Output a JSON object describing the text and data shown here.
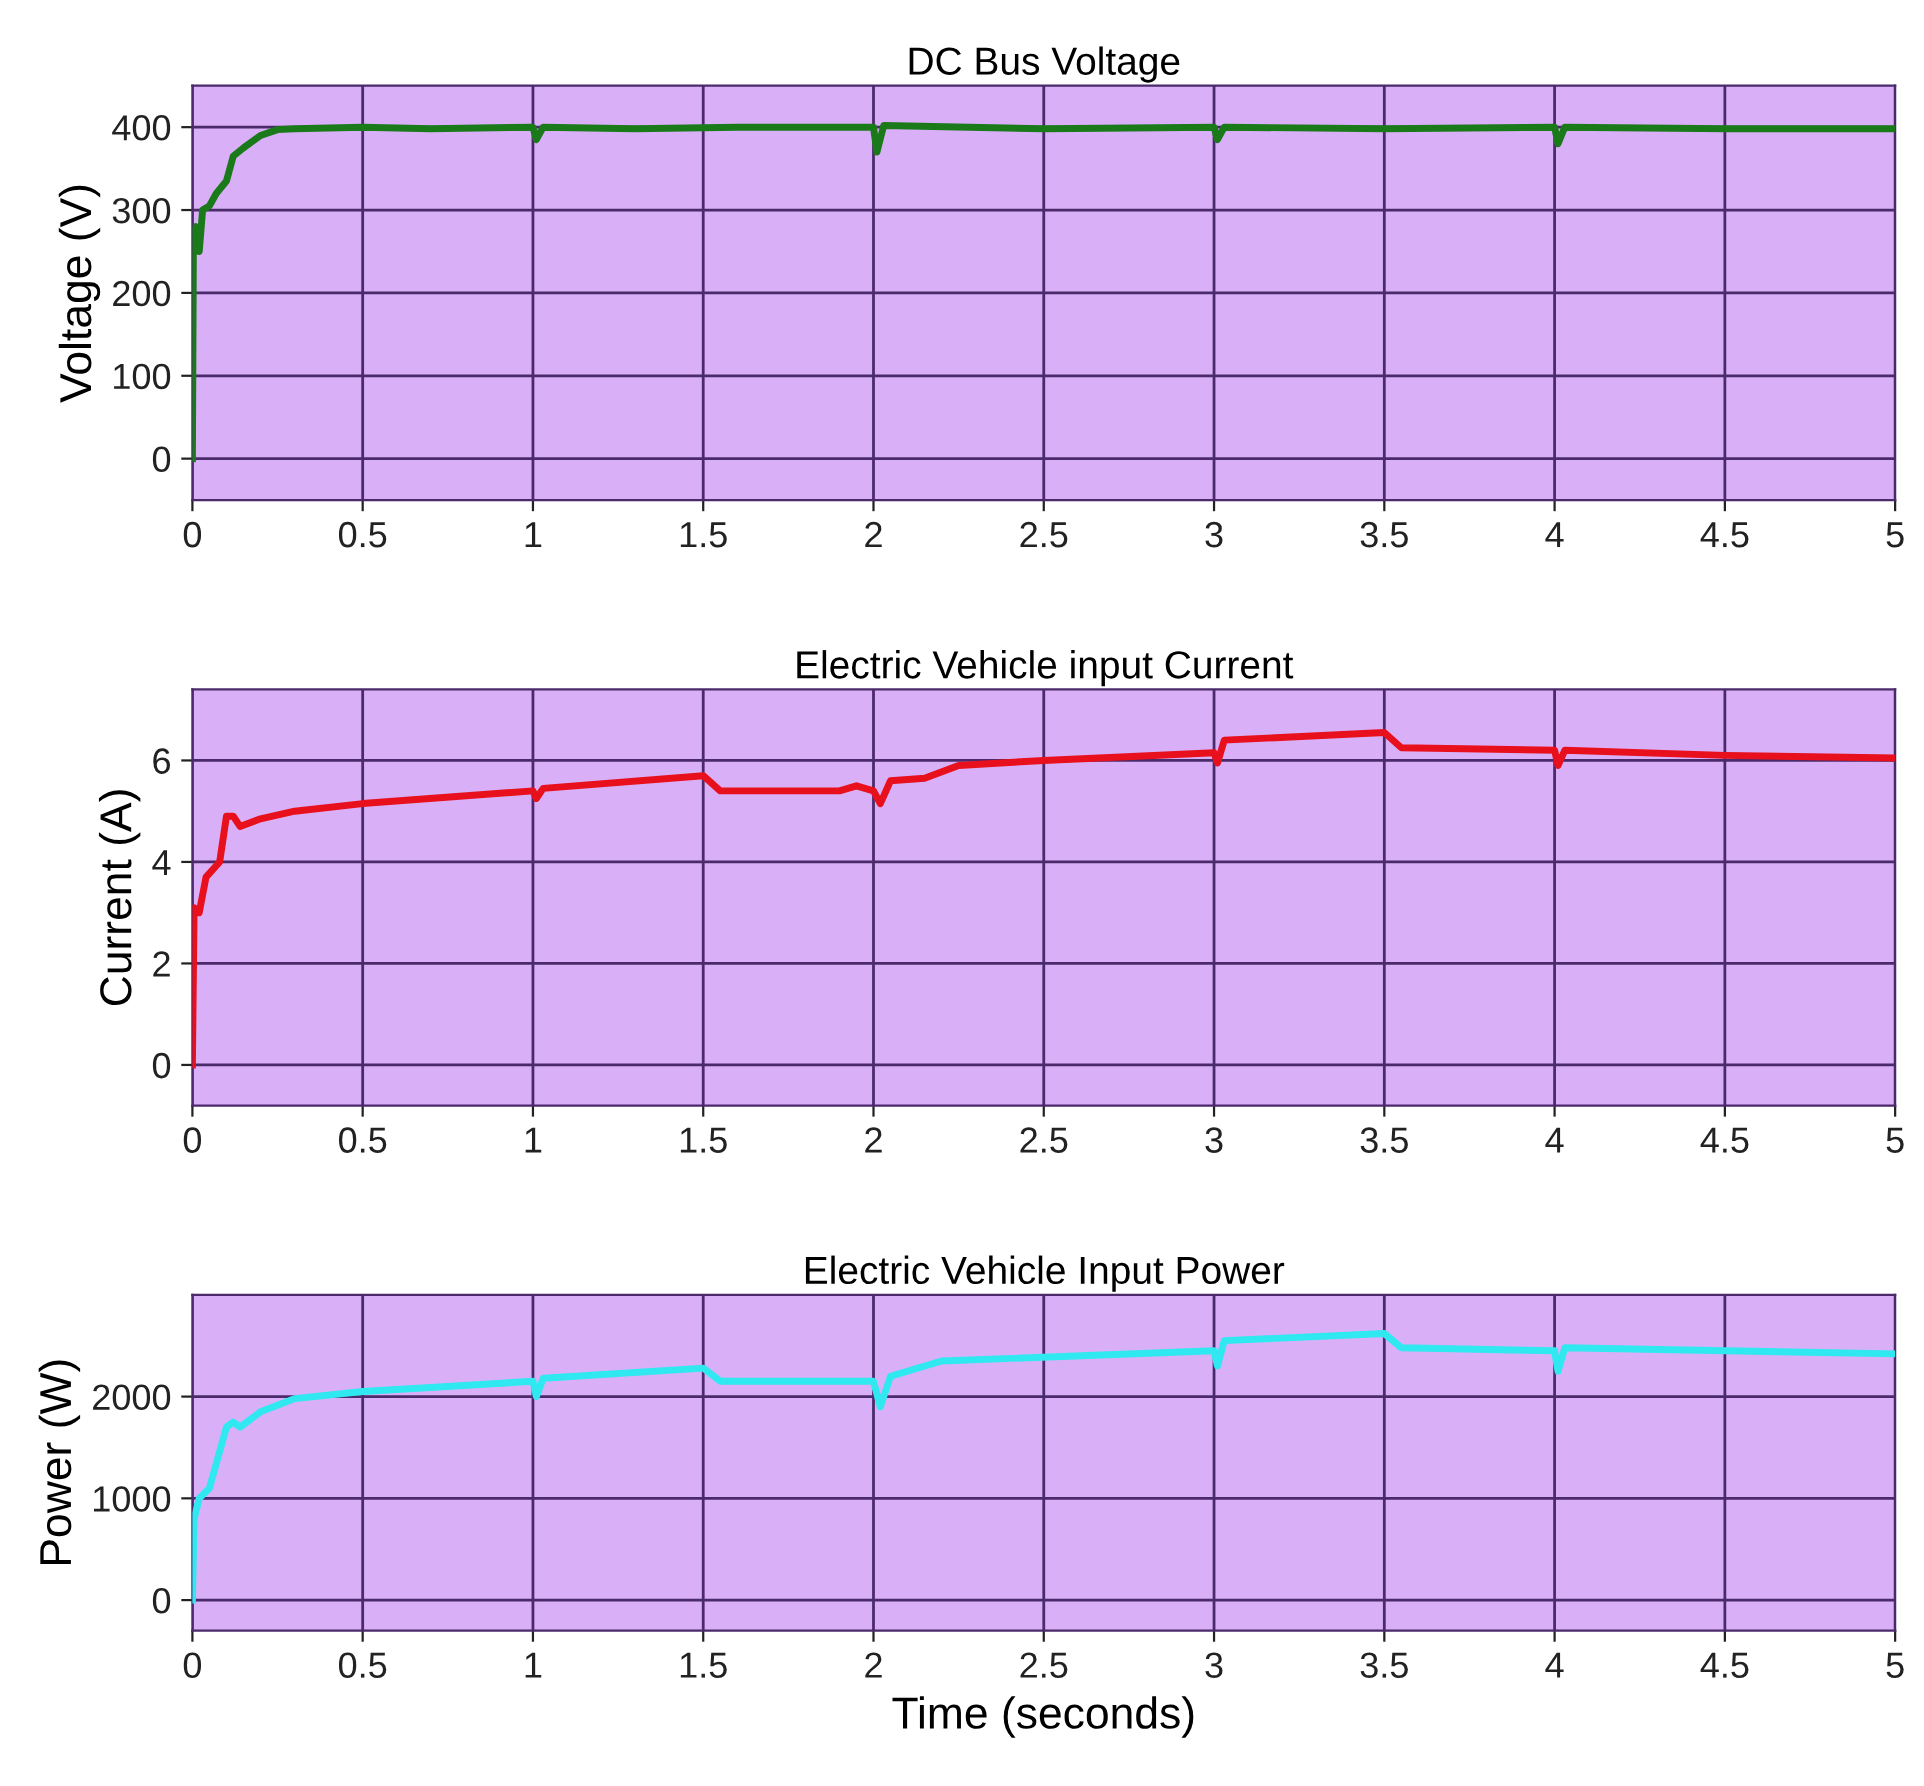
{
  "chart_data": [
    {
      "type": "line",
      "title": "DC Bus Voltage",
      "ylabel": "Voltage (V)",
      "grid": true,
      "xlim": [
        0,
        5
      ],
      "xticks": [
        0,
        0.5,
        1,
        1.5,
        2,
        2.5,
        3,
        3.5,
        4,
        4.5,
        5
      ],
      "ylim": [
        -50,
        450
      ],
      "yticks": [
        0,
        100,
        200,
        300,
        400
      ],
      "series": [
        {
          "color": "#1a7a1a",
          "x": [
            0,
            0.003,
            0.01,
            0.02,
            0.03,
            0.05,
            0.07,
            0.1,
            0.12,
            0.15,
            0.2,
            0.25,
            0.3,
            0.5,
            0.7,
            1.0,
            1.01,
            1.03,
            1.3,
            1.6,
            2.0,
            2.01,
            2.03,
            2.5,
            3.0,
            3.01,
            3.03,
            3.5,
            4.0,
            4.01,
            4.03,
            4.5,
            5
          ],
          "values": [
            0,
            270,
            280,
            250,
            300,
            305,
            320,
            335,
            365,
            375,
            390,
            397,
            398,
            400,
            398,
            400,
            385,
            400,
            398,
            400,
            400,
            370,
            402,
            398,
            400,
            385,
            400,
            398,
            400,
            380,
            400,
            398,
            398
          ]
        }
      ]
    },
    {
      "type": "line",
      "title": "Electric Vehicle input Current",
      "ylabel": "Current (A)",
      "grid": true,
      "xlim": [
        0,
        5
      ],
      "xticks": [
        0,
        0.5,
        1,
        1.5,
        2,
        2.5,
        3,
        3.5,
        4,
        4.5,
        5
      ],
      "ylim": [
        -0.8,
        7.4
      ],
      "yticks": [
        0,
        2,
        4,
        6
      ],
      "series": [
        {
          "color": "#e8101c",
          "x": [
            0,
            0.005,
            0.02,
            0.04,
            0.08,
            0.1,
            0.12,
            0.14,
            0.2,
            0.3,
            0.5,
            1.0,
            1.01,
            1.03,
            1.5,
            1.55,
            1.9,
            1.95,
            2.0,
            2.02,
            2.05,
            2.15,
            2.25,
            2.5,
            3.0,
            3.01,
            3.03,
            3.5,
            3.55,
            4.0,
            4.01,
            4.03,
            4.5,
            5
          ],
          "values": [
            0,
            3.1,
            3.0,
            3.7,
            4.0,
            4.9,
            4.9,
            4.7,
            4.85,
            5.0,
            5.15,
            5.4,
            5.25,
            5.45,
            5.7,
            5.4,
            5.4,
            5.5,
            5.4,
            5.15,
            5.6,
            5.65,
            5.9,
            6.0,
            6.15,
            5.95,
            6.4,
            6.55,
            6.25,
            6.2,
            5.9,
            6.2,
            6.1,
            6.05
          ]
        }
      ]
    },
    {
      "type": "line",
      "title": "Electric Vehicle Input Power",
      "ylabel": "Power (W)",
      "xlabel": "Time (seconds)",
      "grid": true,
      "xlim": [
        0,
        5
      ],
      "xticks": [
        0,
        0.5,
        1,
        1.5,
        2,
        2.5,
        3,
        3.5,
        4,
        4.5,
        5
      ],
      "ylim": [
        -300,
        3000
      ],
      "yticks": [
        0,
        1000,
        2000
      ],
      "series": [
        {
          "color": "#30e8f0",
          "x": [
            0,
            0.005,
            0.02,
            0.05,
            0.1,
            0.12,
            0.14,
            0.2,
            0.3,
            0.5,
            1.0,
            1.01,
            1.03,
            1.5,
            1.55,
            2.0,
            2.02,
            2.05,
            2.2,
            3.0,
            3.01,
            3.03,
            3.5,
            3.55,
            4.0,
            4.01,
            4.03,
            5
          ],
          "values": [
            0,
            800,
            1000,
            1100,
            1700,
            1750,
            1700,
            1850,
            1980,
            2050,
            2150,
            2000,
            2180,
            2280,
            2150,
            2150,
            1900,
            2200,
            2350,
            2450,
            2300,
            2550,
            2620,
            2480,
            2450,
            2250,
            2480,
            2420
          ]
        }
      ]
    }
  ]
}
